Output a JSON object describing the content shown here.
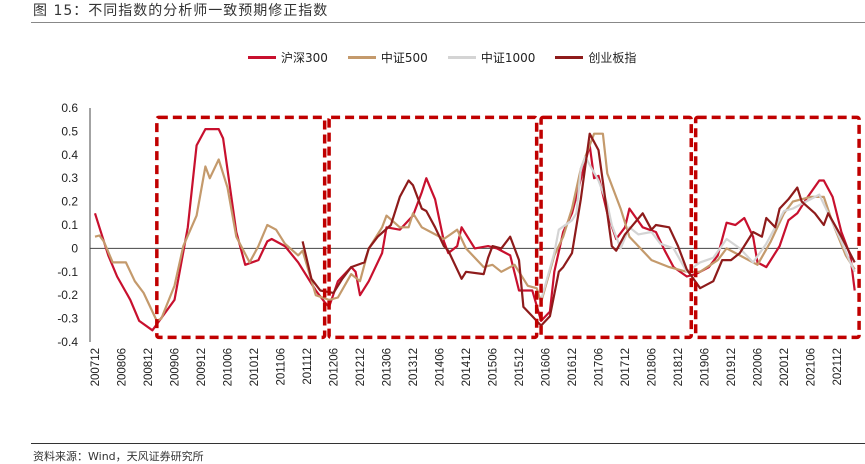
{
  "title": "图 15：不同指数的分析师一致预期修正指数",
  "source": "资料来源：Wind，天风证券研究所",
  "chart_data": {
    "type": "line",
    "title": "",
    "xlabel": "",
    "ylabel": "",
    "ylim": [
      -0.4,
      0.6
    ],
    "yticks": [
      "0.6",
      "0.5",
      "0.4",
      "0.3",
      "0.2",
      "0.1",
      "0",
      "-0.1",
      "-0.2",
      "-0.3",
      "-0.4"
    ],
    "xticks": [
      "200712",
      "200806",
      "200812",
      "200906",
      "200912",
      "201006",
      "201012",
      "201106",
      "201112",
      "201206",
      "201212",
      "201306",
      "201312",
      "201406",
      "201412",
      "201506",
      "201512",
      "201606",
      "201612",
      "201706",
      "201712",
      "201806",
      "201812",
      "201906",
      "201912",
      "202006",
      "202012",
      "202106",
      "202112"
    ],
    "xrange": [
      "200712",
      "202205"
    ],
    "grid": false,
    "legend_position": "top",
    "highlight_periods": [
      {
        "start": "200902",
        "end": "201204",
        "ymin": -0.38,
        "ymax": 0.56
      },
      {
        "start": "201205",
        "end": "201604",
        "ymin": -0.38,
        "ymax": 0.56
      },
      {
        "start": "201605",
        "end": "201903",
        "ymin": -0.38,
        "ymax": 0.56
      },
      {
        "start": "201904",
        "end": "202205",
        "ymin": -0.38,
        "ymax": 0.56
      }
    ],
    "highlight_color": "#C00000",
    "series": [
      {
        "name": "沪深300",
        "color": "#C8102E",
        "points": [
          [
            "200712",
            0.15
          ],
          [
            "200801",
            0.09
          ],
          [
            "200803",
            -0.03
          ],
          [
            "200805",
            -0.12
          ],
          [
            "200808",
            -0.22
          ],
          [
            "200810",
            -0.31
          ],
          [
            "200901",
            -0.35
          ],
          [
            "200906",
            -0.22
          ],
          [
            "200909",
            0.09
          ],
          [
            "200911",
            0.44
          ],
          [
            "201001",
            0.51
          ],
          [
            "201004",
            0.51
          ],
          [
            "201005",
            0.47
          ],
          [
            "201008",
            0.07
          ],
          [
            "201010",
            -0.07
          ],
          [
            "201101",
            -0.05
          ],
          [
            "201103",
            0.03
          ],
          [
            "201104",
            0.04
          ],
          [
            "201107",
            0.01
          ],
          [
            "201110",
            -0.06
          ],
          [
            "201202",
            -0.18
          ],
          [
            "201204",
            -0.23
          ],
          [
            "201205",
            -0.25
          ],
          [
            "201207",
            -0.14
          ],
          [
            "201210",
            -0.08
          ],
          [
            "201211",
            -0.1
          ],
          [
            "201212",
            -0.2
          ],
          [
            "201302",
            -0.14
          ],
          [
            "201305",
            -0.02
          ],
          [
            "201306",
            0.09
          ],
          [
            "201309",
            0.08
          ],
          [
            "201312",
            0.14
          ],
          [
            "201402",
            0.24
          ],
          [
            "201403",
            0.3
          ],
          [
            "201405",
            0.21
          ],
          [
            "201407",
            0.03
          ],
          [
            "201408",
            -0.02
          ],
          [
            "201410",
            0.01
          ],
          [
            "201411",
            0.09
          ],
          [
            "201502",
            0.0
          ],
          [
            "201505",
            0.01
          ],
          [
            "201507",
            0.0
          ],
          [
            "201510",
            -0.03
          ],
          [
            "201512",
            -0.18
          ],
          [
            "201603",
            -0.18
          ],
          [
            "201605",
            -0.31
          ],
          [
            "201607",
            -0.27
          ],
          [
            "201608",
            -0.1
          ],
          [
            "201610",
            0.07
          ],
          [
            "201612",
            0.15
          ],
          [
            "201703",
            0.37
          ],
          [
            "201704",
            0.44
          ],
          [
            "201705",
            0.3
          ],
          [
            "201706",
            0.31
          ],
          [
            "201708",
            0.15
          ],
          [
            "201710",
            0.04
          ],
          [
            "201712",
            0.09
          ],
          [
            "201801",
            0.17
          ],
          [
            "201804",
            0.09
          ],
          [
            "201807",
            0.07
          ],
          [
            "201809",
            -0.01
          ],
          [
            "201811",
            -0.08
          ],
          [
            "201902",
            -0.12
          ],
          [
            "201904",
            -0.11
          ],
          [
            "201907",
            -0.08
          ],
          [
            "201909",
            -0.03
          ],
          [
            "201911",
            0.11
          ],
          [
            "202001",
            0.1
          ],
          [
            "202003",
            0.13
          ],
          [
            "202005",
            0.05
          ],
          [
            "202006",
            -0.06
          ],
          [
            "202008",
            -0.08
          ],
          [
            "202011",
            0.01
          ],
          [
            "202101",
            0.12
          ],
          [
            "202103",
            0.15
          ],
          [
            "202105",
            0.21
          ],
          [
            "202108",
            0.29
          ],
          [
            "202109",
            0.29
          ],
          [
            "202111",
            0.22
          ],
          [
            "202201",
            0.07
          ],
          [
            "202203",
            -0.03
          ],
          [
            "202204",
            -0.18
          ]
        ]
      },
      {
        "name": "中证500",
        "color": "#C49A6C",
        "points": [
          [
            "200712",
            0.05
          ],
          [
            "200801",
            0.055
          ],
          [
            "200802",
            0.03
          ],
          [
            "200804",
            -0.06
          ],
          [
            "200807",
            -0.06
          ],
          [
            "200809",
            -0.14
          ],
          [
            "200811",
            -0.19
          ],
          [
            "200902",
            -0.31
          ],
          [
            "200903",
            -0.3
          ],
          [
            "200906",
            -0.16
          ],
          [
            "200908",
            0.01
          ],
          [
            "200911",
            0.14
          ],
          [
            "201001",
            0.35
          ],
          [
            "201002",
            0.3
          ],
          [
            "201004",
            0.38
          ],
          [
            "201006",
            0.26
          ],
          [
            "201008",
            0.05
          ],
          [
            "201011",
            -0.06
          ],
          [
            "201101",
            0.01
          ],
          [
            "201103",
            0.1
          ],
          [
            "201105",
            0.08
          ],
          [
            "201107",
            0.02
          ],
          [
            "201110",
            -0.03
          ],
          [
            "201111",
            -0.01
          ],
          [
            "201202",
            -0.2
          ],
          [
            "201205",
            -0.22
          ],
          [
            "201207",
            -0.21
          ],
          [
            "201210",
            -0.11
          ],
          [
            "201212",
            -0.14
          ],
          [
            "201302",
            0.0
          ],
          [
            "201305",
            0.09
          ],
          [
            "201306",
            0.14
          ],
          [
            "201309",
            0.09
          ],
          [
            "201311",
            0.09
          ],
          [
            "201312",
            0.15
          ],
          [
            "201402",
            0.09
          ],
          [
            "201404",
            0.07
          ],
          [
            "201407",
            0.04
          ],
          [
            "201410",
            0.08
          ],
          [
            "201412",
            0.0
          ],
          [
            "201504",
            -0.08
          ],
          [
            "201506",
            -0.07
          ],
          [
            "201508",
            -0.1
          ],
          [
            "201511",
            -0.07
          ],
          [
            "201602",
            -0.16
          ],
          [
            "201604",
            -0.17
          ],
          [
            "201605",
            -0.23
          ],
          [
            "201608",
            -0.03
          ],
          [
            "201610",
            0.05
          ],
          [
            "201612",
            0.17
          ],
          [
            "201702",
            0.34
          ],
          [
            "201705",
            0.49
          ],
          [
            "201707",
            0.49
          ],
          [
            "201708",
            0.32
          ],
          [
            "201711",
            0.17
          ],
          [
            "201801",
            0.05
          ],
          [
            "201803",
            0.01
          ],
          [
            "201806",
            -0.05
          ],
          [
            "201810",
            -0.08
          ],
          [
            "201902",
            -0.1
          ],
          [
            "201905",
            -0.1
          ],
          [
            "201909",
            -0.05
          ],
          [
            "201911",
            0.0
          ],
          [
            "202002",
            -0.03
          ],
          [
            "202006",
            -0.07
          ],
          [
            "202009",
            0.03
          ],
          [
            "202012",
            0.15
          ],
          [
            "202102",
            0.2
          ],
          [
            "202106",
            0.22
          ],
          [
            "202109",
            0.22
          ],
          [
            "202111",
            0.11
          ],
          [
            "202202",
            -0.03
          ],
          [
            "202204",
            -0.09
          ]
        ]
      },
      {
        "name": "中证1000",
        "color": "#D4D4D4",
        "points": [
          [
            "201605",
            -0.22
          ],
          [
            "201608",
            -0.02
          ],
          [
            "201609",
            0.08
          ],
          [
            "201612",
            0.12
          ],
          [
            "201701",
            0.15
          ],
          [
            "201702",
            0.34
          ],
          [
            "201703",
            0.39
          ],
          [
            "201706",
            0.29
          ],
          [
            "201708",
            0.19
          ],
          [
            "201709",
            0.1
          ],
          [
            "201711",
            0.0
          ],
          [
            "201801",
            0.09
          ],
          [
            "201803",
            0.06
          ],
          [
            "201806",
            0.07
          ],
          [
            "201808",
            0.02
          ],
          [
            "201811",
            0.0
          ],
          [
            "201902",
            -0.1
          ],
          [
            "201905",
            -0.06
          ],
          [
            "201908",
            -0.04
          ],
          [
            "201911",
            0.04
          ],
          [
            "202002",
            0.0
          ],
          [
            "202005",
            -0.06
          ],
          [
            "202008",
            0.02
          ],
          [
            "202012",
            0.16
          ],
          [
            "202102",
            0.17
          ],
          [
            "202104",
            0.19
          ],
          [
            "202108",
            0.23
          ],
          [
            "202110",
            0.15
          ],
          [
            "202201",
            0.03
          ],
          [
            "202203",
            -0.06
          ],
          [
            "202204",
            -0.1
          ]
        ]
      },
      {
        "name": "创业板指",
        "color": "#8E1B1B",
        "points": [
          [
            "201111",
            0.03
          ],
          [
            "201201",
            -0.13
          ],
          [
            "201203",
            -0.18
          ],
          [
            "201206",
            -0.19
          ],
          [
            "201208",
            -0.13
          ],
          [
            "201210",
            -0.08
          ],
          [
            "201301",
            -0.06
          ],
          [
            "201302",
            0.0
          ],
          [
            "201304",
            0.05
          ],
          [
            "201307",
            0.1
          ],
          [
            "201309",
            0.22
          ],
          [
            "201311",
            0.29
          ],
          [
            "201312",
            0.27
          ],
          [
            "201402",
            0.17
          ],
          [
            "201403",
            0.16
          ],
          [
            "201405",
            0.09
          ],
          [
            "201407",
            0.01
          ],
          [
            "201408",
            -0.01
          ],
          [
            "201411",
            -0.13
          ],
          [
            "201412",
            -0.1
          ],
          [
            "201504",
            -0.11
          ],
          [
            "201505",
            -0.04
          ],
          [
            "201506",
            0.01
          ],
          [
            "201508",
            0.0
          ],
          [
            "201510",
            0.05
          ],
          [
            "201512",
            -0.05
          ],
          [
            "201601",
            -0.25
          ],
          [
            "201603",
            -0.29
          ],
          [
            "201605",
            -0.33
          ],
          [
            "201607",
            -0.29
          ],
          [
            "201609",
            -0.1
          ],
          [
            "201610",
            -0.08
          ],
          [
            "201612",
            -0.02
          ],
          [
            "201702",
            0.21
          ],
          [
            "201704",
            0.49
          ],
          [
            "201706",
            0.42
          ],
          [
            "201709",
            0.01
          ],
          [
            "201710",
            -0.01
          ],
          [
            "201712",
            0.06
          ],
          [
            "201804",
            0.15
          ],
          [
            "201806",
            0.08
          ],
          [
            "201807",
            0.1
          ],
          [
            "201810",
            0.09
          ],
          [
            "201812",
            0.01
          ],
          [
            "201902",
            -0.09
          ],
          [
            "201905",
            -0.17
          ],
          [
            "201908",
            -0.14
          ],
          [
            "201910",
            -0.05
          ],
          [
            "201912",
            -0.05
          ],
          [
            "202002",
            -0.02
          ],
          [
            "202005",
            0.07
          ],
          [
            "202007",
            0.05
          ],
          [
            "202008",
            0.13
          ],
          [
            "202010",
            0.09
          ],
          [
            "202011",
            0.17
          ],
          [
            "202101",
            0.21
          ],
          [
            "202103",
            0.26
          ],
          [
            "202104",
            0.2
          ],
          [
            "202107",
            0.15
          ],
          [
            "202109",
            0.1
          ],
          [
            "202110",
            0.15
          ],
          [
            "202201",
            0.05
          ],
          [
            "202204",
            -0.06
          ]
        ]
      }
    ]
  }
}
